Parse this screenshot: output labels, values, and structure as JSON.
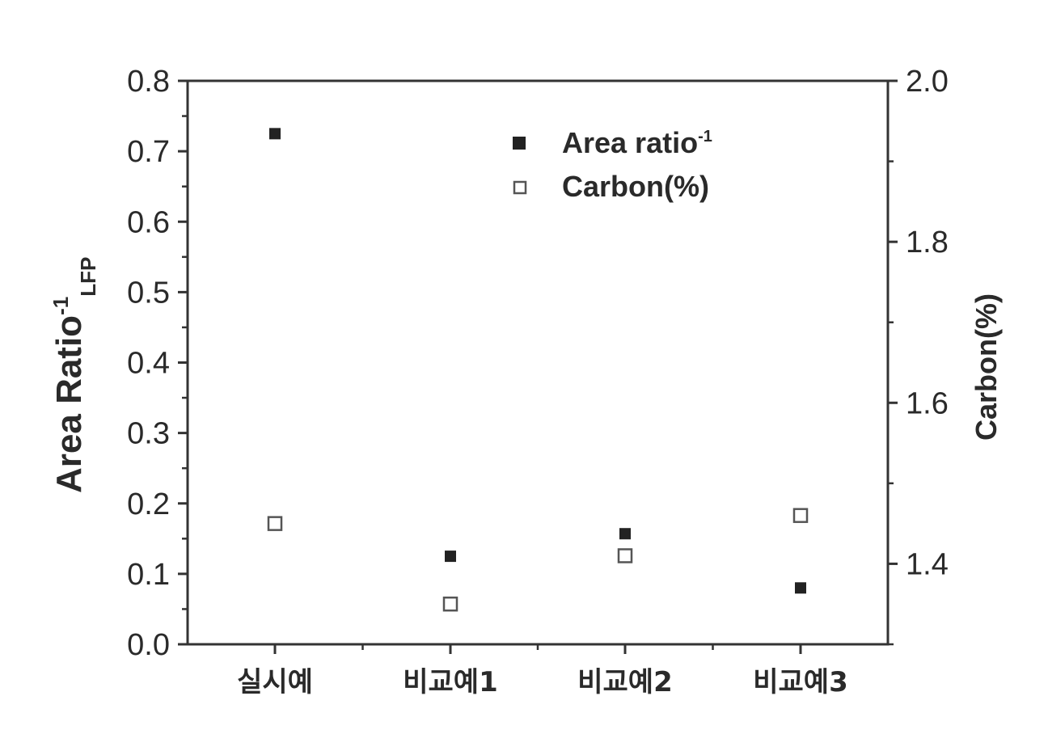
{
  "chart_data": {
    "type": "scatter",
    "categories": [
      "실시예",
      "비교예1",
      "비교예2",
      "비교예3"
    ],
    "series": [
      {
        "name": "Area ratio-1",
        "axis": "left",
        "marker": "filled-square",
        "values": [
          0.725,
          0.125,
          0.157,
          0.08
        ]
      },
      {
        "name": "Carbon(%)",
        "axis": "right",
        "marker": "open-square",
        "values": [
          1.45,
          1.35,
          1.41,
          1.46
        ]
      }
    ],
    "y_left": {
      "label_main": "Area Ratio",
      "label_sup": "-1",
      "label_sub": "LFP",
      "range": [
        0.0,
        0.8
      ],
      "ticks": [
        "0.0",
        "0.1",
        "0.2",
        "0.3",
        "0.4",
        "0.5",
        "0.6",
        "0.7",
        "0.8"
      ]
    },
    "y_right": {
      "label": "Carbon(%)",
      "range": [
        1.3,
        2.0
      ],
      "ticks": [
        "1.4",
        "1.6",
        "1.8",
        "2.0"
      ],
      "tick_values": [
        1.4,
        1.6,
        1.8,
        2.0
      ]
    },
    "legend": {
      "placement": "top-center",
      "items": [
        {
          "main": "Area ratio",
          "sup": "-1",
          "marker": "filled-square"
        },
        {
          "main": "Carbon(%)",
          "sup": "",
          "marker": "open-square"
        }
      ]
    },
    "grid": false,
    "colors": {
      "axis": "#333333",
      "marker": "#222222",
      "open_marker": "#555555"
    }
  }
}
